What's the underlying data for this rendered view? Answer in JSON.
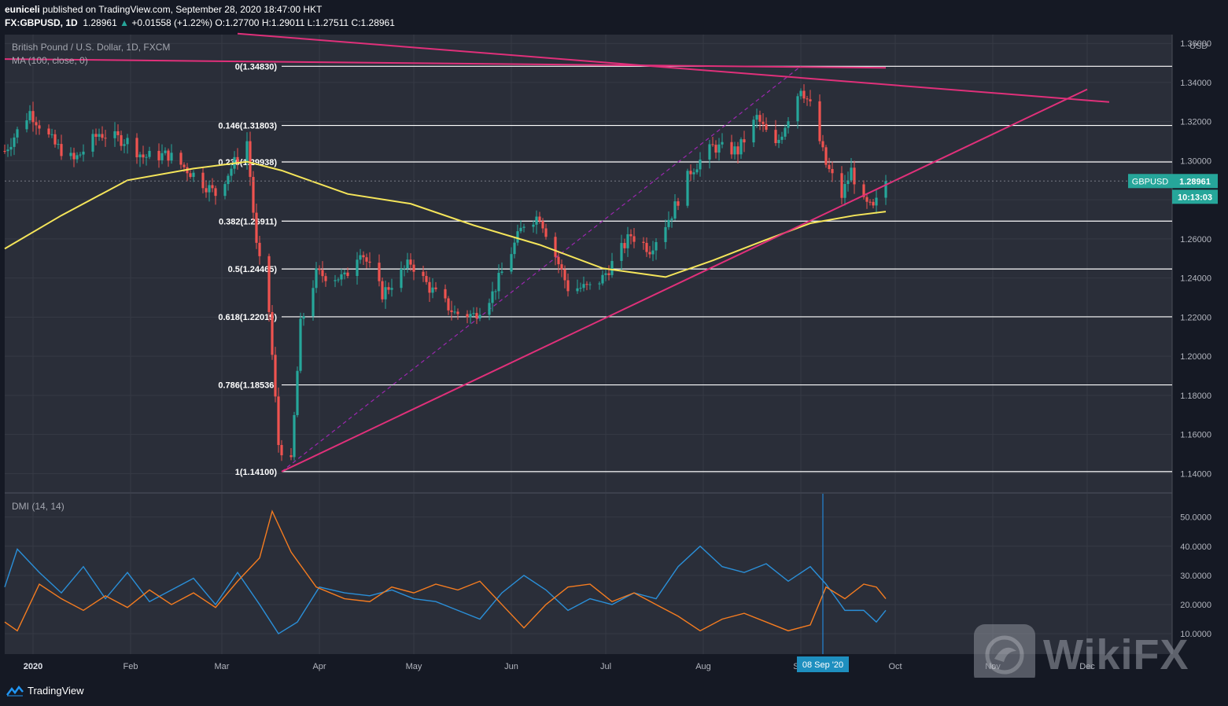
{
  "header": {
    "user": "euniceli",
    "published": "published on TradingView.com, September 28, 2020 18:47:00 HKT",
    "symbol": "FX:GBPUSD, 1D",
    "last": "1.28961",
    "change": "+0.01558 (+1.22%)",
    "o_label": "O:",
    "o": "1.27700",
    "h_label": "H:",
    "h": "1.29011",
    "l_label": "L:",
    "l": "1.27511",
    "c_label": "C:",
    "c": "1.28961"
  },
  "footer": {
    "brand": "TradingView"
  },
  "watermark": {
    "text": "WikiFX"
  },
  "colors": {
    "bg": "#151924",
    "pane": "#2a2e39",
    "grid": "#363a45",
    "up": "#26a69a",
    "down": "#ef5350",
    "ma": "#f5e55a",
    "trend": "#e0307a",
    "dmi_plus": "#2a8fd8",
    "dmi_minus": "#f57c20",
    "fib_dash": "#9c27b0",
    "price_badge": "#26a69a",
    "crosshair": "#2196f3"
  },
  "chart_data": [
    {
      "type": "candlestick",
      "title": "British Pound / U.S. Dollar, 1D, FXCM",
      "indicator_label": "MA (100, close, 0)",
      "currency": "USD",
      "x_ticks": [
        "2020",
        "Feb",
        "Mar",
        "Apr",
        "May",
        "Jun",
        "Jul",
        "Aug",
        "Sep",
        "Oct",
        "Nov",
        "Dec"
      ],
      "y_ticks": [
        "1.36000",
        "1.34000",
        "1.32000",
        "1.30000",
        "1.28000",
        "1.26000",
        "1.24000",
        "1.22000",
        "1.20000",
        "1.18000",
        "1.16000",
        "1.14000"
      ],
      "ylim": [
        1.1305,
        1.3645
      ],
      "last_price": {
        "symbol": "GBPUSD",
        "value": "1.28961",
        "countdown": "10:13:03",
        "raw": 1.28961
      },
      "fib_levels": [
        {
          "label": "0(1.34830)",
          "value": 1.3483
        },
        {
          "label": "0.146(1.31803)",
          "value": 1.31803
        },
        {
          "label": "0.236(1.29938)",
          "value": 1.29938
        },
        {
          "label": "0.382(1.26911)",
          "value": 1.26911
        },
        {
          "label": "0.5(1.24465)",
          "value": 1.24465
        },
        {
          "label": "0.618(1.22019)",
          "value": 1.22019
        },
        {
          "label": "0.786(1.18536)",
          "value": 1.18536
        },
        {
          "label": "1(1.14100)",
          "value": 1.141
        }
      ],
      "close_path": [
        [
          "2019-12-23",
          1.305
        ],
        [
          "2019-12-31",
          1.325
        ],
        [
          "2020-01-08",
          1.308
        ],
        [
          "2020-01-14",
          1.3
        ],
        [
          "2020-01-22",
          1.314
        ],
        [
          "2020-01-31",
          1.31
        ],
        [
          "2020-02-05",
          1.302
        ],
        [
          "2020-02-13",
          1.303
        ],
        [
          "2020-02-21",
          1.293
        ],
        [
          "2020-02-28",
          1.283
        ],
        [
          "2020-03-05",
          1.299
        ],
        [
          "2020-03-09",
          1.31
        ],
        [
          "2020-03-12",
          1.256
        ],
        [
          "2020-03-16",
          1.223
        ],
        [
          "2020-03-19",
          1.155
        ],
        [
          "2020-03-23",
          1.145
        ],
        [
          "2020-03-26",
          1.216
        ],
        [
          "2020-03-31",
          1.242
        ],
        [
          "2020-04-09",
          1.24
        ],
        [
          "2020-04-14",
          1.255
        ],
        [
          "2020-04-21",
          1.232
        ],
        [
          "2020-04-30",
          1.248
        ],
        [
          "2020-05-06",
          1.235
        ],
        [
          "2020-05-14",
          1.222
        ],
        [
          "2020-05-20",
          1.221
        ],
        [
          "2020-05-26",
          1.232
        ],
        [
          "2020-06-05",
          1.268
        ],
        [
          "2020-06-10",
          1.272
        ],
        [
          "2020-06-19",
          1.235
        ],
        [
          "2020-06-26",
          1.235
        ],
        [
          "2020-06-30",
          1.24
        ],
        [
          "2020-07-09",
          1.262
        ],
        [
          "2020-07-15",
          1.255
        ],
        [
          "2020-07-22",
          1.273
        ],
        [
          "2020-07-28",
          1.295
        ],
        [
          "2020-08-04",
          1.307
        ],
        [
          "2020-08-12",
          1.305
        ],
        [
          "2020-08-18",
          1.322
        ],
        [
          "2020-08-24",
          1.307
        ],
        [
          "2020-09-01",
          1.338
        ],
        [
          "2020-09-04",
          1.328
        ],
        [
          "2020-09-09",
          1.298
        ],
        [
          "2020-09-14",
          1.282
        ],
        [
          "2020-09-17",
          1.295
        ],
        [
          "2020-09-21",
          1.278
        ],
        [
          "2020-09-24",
          1.275
        ],
        [
          "2020-09-28",
          1.28961
        ]
      ],
      "ma_100": [
        [
          "2019-12-23",
          1.255
        ],
        [
          "2020-01-10",
          1.272
        ],
        [
          "2020-01-31",
          1.29
        ],
        [
          "2020-02-21",
          1.296
        ],
        [
          "2020-03-09",
          1.2995
        ],
        [
          "2020-03-20",
          1.295
        ],
        [
          "2020-04-10",
          1.283
        ],
        [
          "2020-04-30",
          1.278
        ],
        [
          "2020-05-20",
          1.267
        ],
        [
          "2020-06-10",
          1.257
        ],
        [
          "2020-06-30",
          1.245
        ],
        [
          "2020-07-20",
          1.2405
        ],
        [
          "2020-08-04",
          1.249
        ],
        [
          "2020-08-20",
          1.259
        ],
        [
          "2020-09-04",
          1.268
        ],
        [
          "2020-09-18",
          1.272
        ],
        [
          "2020-09-28",
          1.274
        ]
      ],
      "trendlines": [
        {
          "from": [
            "2019-12-23",
            1.352
          ],
          "to": [
            "2020-09-28",
            1.3475
          ]
        },
        {
          "from": [
            "2020-03-06",
            1.365
          ],
          "to": [
            "2020-12-08",
            1.33
          ]
        },
        {
          "from": [
            "2020-03-20",
            1.141
          ],
          "to": [
            "2020-12-01",
            1.3365
          ]
        }
      ],
      "fib_anchor": {
        "from": [
          "2020-03-20",
          1.141
        ],
        "to": [
          "2020-09-01",
          1.3483
        ]
      }
    },
    {
      "type": "line",
      "title": "DMI (14, 14)",
      "y_ticks": [
        "50.0000",
        "40.0000",
        "30.0000",
        "20.0000",
        "10.0000"
      ],
      "ylim": [
        3,
        58
      ],
      "crosshair_date_label": "08 Sep '20",
      "series": [
        {
          "id": "plus",
          "values": [
            [
              "2019-12-23",
              26
            ],
            [
              "2019-12-27",
              39
            ],
            [
              "2020-01-03",
              31
            ],
            [
              "2020-01-10",
              24
            ],
            [
              "2020-01-17",
              33
            ],
            [
              "2020-01-24",
              22
            ],
            [
              "2020-01-31",
              31
            ],
            [
              "2020-02-07",
              21
            ],
            [
              "2020-02-14",
              25
            ],
            [
              "2020-02-21",
              29
            ],
            [
              "2020-02-28",
              20
            ],
            [
              "2020-03-06",
              31
            ],
            [
              "2020-03-13",
              20
            ],
            [
              "2020-03-19",
              10
            ],
            [
              "2020-03-25",
              14
            ],
            [
              "2020-04-01",
              26
            ],
            [
              "2020-04-09",
              24
            ],
            [
              "2020-04-17",
              23
            ],
            [
              "2020-04-24",
              25
            ],
            [
              "2020-05-01",
              22
            ],
            [
              "2020-05-08",
              21
            ],
            [
              "2020-05-15",
              18
            ],
            [
              "2020-05-22",
              15
            ],
            [
              "2020-05-29",
              24
            ],
            [
              "2020-06-05",
              30
            ],
            [
              "2020-06-12",
              25
            ],
            [
              "2020-06-19",
              18
            ],
            [
              "2020-06-26",
              22
            ],
            [
              "2020-07-03",
              20
            ],
            [
              "2020-07-10",
              24
            ],
            [
              "2020-07-17",
              22
            ],
            [
              "2020-07-24",
              33
            ],
            [
              "2020-07-31",
              40
            ],
            [
              "2020-08-07",
              33
            ],
            [
              "2020-08-14",
              31
            ],
            [
              "2020-08-21",
              34
            ],
            [
              "2020-08-28",
              28
            ],
            [
              "2020-09-04",
              33
            ],
            [
              "2020-09-09",
              27
            ],
            [
              "2020-09-15",
              18
            ],
            [
              "2020-09-21",
              18
            ],
            [
              "2020-09-25",
              14
            ],
            [
              "2020-09-28",
              18
            ]
          ]
        },
        {
          "id": "minus",
          "values": [
            [
              "2019-12-23",
              14
            ],
            [
              "2019-12-27",
              11
            ],
            [
              "2020-01-03",
              27
            ],
            [
              "2020-01-10",
              22
            ],
            [
              "2020-01-17",
              18
            ],
            [
              "2020-01-24",
              23
            ],
            [
              "2020-01-31",
              19
            ],
            [
              "2020-02-07",
              25
            ],
            [
              "2020-02-14",
              20
            ],
            [
              "2020-02-21",
              24
            ],
            [
              "2020-02-28",
              19
            ],
            [
              "2020-03-06",
              28
            ],
            [
              "2020-03-13",
              36
            ],
            [
              "2020-03-17",
              52
            ],
            [
              "2020-03-23",
              38
            ],
            [
              "2020-03-31",
              26
            ],
            [
              "2020-04-09",
              22
            ],
            [
              "2020-04-17",
              21
            ],
            [
              "2020-04-24",
              26
            ],
            [
              "2020-05-01",
              24
            ],
            [
              "2020-05-08",
              27
            ],
            [
              "2020-05-15",
              25
            ],
            [
              "2020-05-22",
              28
            ],
            [
              "2020-05-29",
              20
            ],
            [
              "2020-06-05",
              12
            ],
            [
              "2020-06-12",
              20
            ],
            [
              "2020-06-19",
              26
            ],
            [
              "2020-06-26",
              27
            ],
            [
              "2020-07-03",
              21
            ],
            [
              "2020-07-10",
              24
            ],
            [
              "2020-07-17",
              20
            ],
            [
              "2020-07-24",
              16
            ],
            [
              "2020-07-31",
              11
            ],
            [
              "2020-08-07",
              15
            ],
            [
              "2020-08-14",
              17
            ],
            [
              "2020-08-21",
              14
            ],
            [
              "2020-08-28",
              11
            ],
            [
              "2020-09-04",
              13
            ],
            [
              "2020-09-09",
              26
            ],
            [
              "2020-09-15",
              22
            ],
            [
              "2020-09-21",
              27
            ],
            [
              "2020-09-25",
              26
            ],
            [
              "2020-09-28",
              22
            ]
          ]
        }
      ]
    }
  ]
}
